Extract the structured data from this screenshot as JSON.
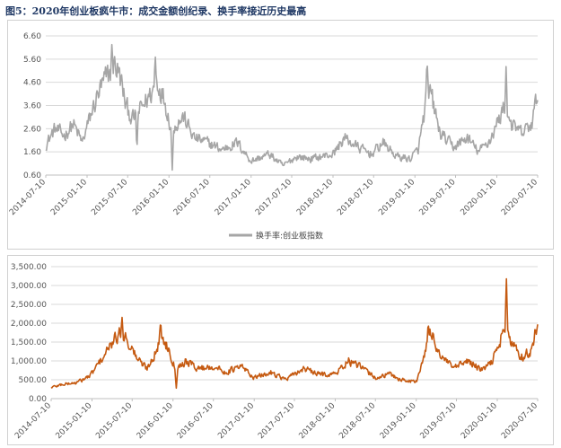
{
  "figure_title": "图5：2020年创业板疯牛市：成交金额创纪录、换手率接近历史最高",
  "chart_data": [
    {
      "type": "line",
      "series": [
        {
          "name": "换手率:创业板指数",
          "color": "#a6a6a6",
          "anchors": [
            [
              "2014-07-10",
              1.9
            ],
            [
              "2014-08-20",
              2.6
            ],
            [
              "2014-10-01",
              2.3
            ],
            [
              "2014-11-10",
              2.8
            ],
            [
              "2014-12-20",
              2.0
            ],
            [
              "2015-01-20",
              3.0
            ],
            [
              "2015-03-01",
              4.1
            ],
            [
              "2015-04-01",
              4.7
            ],
            [
              "2015-05-15",
              5.4
            ],
            [
              "2015-06-10",
              4.7
            ],
            [
              "2015-07-01",
              3.6
            ],
            [
              "2015-08-01",
              3.0
            ],
            [
              "2015-09-01",
              3.4
            ],
            [
              "2015-10-15",
              4.0
            ],
            [
              "2015-11-20",
              4.6
            ],
            [
              "2015-12-20",
              3.9
            ],
            [
              "2016-01-20",
              2.6
            ],
            [
              "2016-03-15",
              3.1
            ],
            [
              "2016-05-01",
              2.2
            ],
            [
              "2016-07-01",
              2.0
            ],
            [
              "2016-09-01",
              1.7
            ],
            [
              "2016-11-10",
              2.0
            ],
            [
              "2017-01-10",
              1.2
            ],
            [
              "2017-04-01",
              1.5
            ],
            [
              "2017-06-01",
              1.0
            ],
            [
              "2017-08-01",
              1.4
            ],
            [
              "2017-10-01",
              1.3
            ],
            [
              "2018-01-10",
              1.5
            ],
            [
              "2018-03-01",
              2.2
            ],
            [
              "2018-05-01",
              1.8
            ],
            [
              "2018-07-01",
              1.5
            ],
            [
              "2018-08-20",
              2.0
            ],
            [
              "2018-10-20",
              1.4
            ],
            [
              "2018-12-20",
              1.3
            ],
            [
              "2019-01-25",
              1.7
            ],
            [
              "2019-02-25",
              3.5
            ],
            [
              "2019-03-20",
              4.2
            ],
            [
              "2019-05-01",
              2.4
            ],
            [
              "2019-07-01",
              1.8
            ],
            [
              "2019-09-01",
              2.2
            ],
            [
              "2019-10-20",
              1.6
            ],
            [
              "2019-12-10",
              2.1
            ],
            [
              "2020-02-15",
              3.6
            ],
            [
              "2020-03-20",
              2.7
            ],
            [
              "2020-05-01",
              2.4
            ],
            [
              "2020-06-15",
              2.8
            ],
            [
              "2020-07-15",
              4.4
            ]
          ],
          "spikes": [
            [
              "2015-05-01",
              6.3
            ],
            [
              "2015-08-20",
              1.6
            ],
            [
              "2015-11-10",
              5.8
            ],
            [
              "2016-01-25",
              0.7
            ],
            [
              "2019-03-05",
              5.6
            ],
            [
              "2020-02-20",
              5.3
            ],
            [
              "2020-07-15",
              4.8
            ]
          ]
        }
      ],
      "ylim": [
        0.6,
        6.6
      ],
      "yticks": [
        "0.60",
        "1.60",
        "2.60",
        "3.60",
        "4.60",
        "5.60",
        "6.60"
      ],
      "xlim": [
        "2014-07-10",
        "2020-07-10"
      ],
      "xticks": [
        "2014-07-10",
        "2015-01-10",
        "2015-07-10",
        "2016-01-10",
        "2016-07-10",
        "2017-01-10",
        "2017-07-10",
        "2018-01-10",
        "2018-07-10",
        "2019-01-10",
        "2019-07-10",
        "2020-01-10",
        "2020-07-10"
      ],
      "legend": "bottom-center",
      "grid": true
    },
    {
      "type": "line",
      "series": [
        {
          "name": "成交金额",
          "color": "#c55a11",
          "anchors": [
            [
              "2014-07-10",
              300
            ],
            [
              "2014-09-01",
              380
            ],
            [
              "2014-11-01",
              420
            ],
            [
              "2015-01-01",
              600
            ],
            [
              "2015-03-01",
              1100
            ],
            [
              "2015-04-15",
              1500
            ],
            [
              "2015-05-20",
              1750
            ],
            [
              "2015-06-15",
              1600
            ],
            [
              "2015-07-10",
              1300
            ],
            [
              "2015-08-10",
              1000
            ],
            [
              "2015-09-15",
              800
            ],
            [
              "2015-10-20",
              1200
            ],
            [
              "2015-11-20",
              1600
            ],
            [
              "2015-12-20",
              1350
            ],
            [
              "2016-01-20",
              800
            ],
            [
              "2016-03-10",
              1000
            ],
            [
              "2016-05-01",
              800
            ],
            [
              "2016-07-10",
              850
            ],
            [
              "2016-09-01",
              700
            ],
            [
              "2016-11-15",
              850
            ],
            [
              "2017-01-10",
              550
            ],
            [
              "2017-04-01",
              700
            ],
            [
              "2017-06-01",
              500
            ],
            [
              "2017-08-20",
              800
            ],
            [
              "2017-10-20",
              650
            ],
            [
              "2018-01-10",
              650
            ],
            [
              "2018-03-10",
              1000
            ],
            [
              "2018-05-15",
              800
            ],
            [
              "2018-07-10",
              550
            ],
            [
              "2018-09-15",
              650
            ],
            [
              "2018-11-01",
              500
            ],
            [
              "2019-01-10",
              450
            ],
            [
              "2019-02-20",
              1200
            ],
            [
              "2019-03-15",
              1800
            ],
            [
              "2019-05-01",
              1100
            ],
            [
              "2019-07-01",
              800
            ],
            [
              "2019-09-01",
              1000
            ],
            [
              "2019-11-01",
              750
            ],
            [
              "2019-12-15",
              950
            ],
            [
              "2020-02-15",
              1900
            ],
            [
              "2020-03-20",
              1400
            ],
            [
              "2020-05-01",
              1100
            ],
            [
              "2020-06-15",
              1300
            ],
            [
              "2020-07-15",
              2200
            ]
          ],
          "spikes": [
            [
              "2015-05-25",
              2200
            ],
            [
              "2015-11-15",
              2100
            ],
            [
              "2016-01-25",
              250
            ],
            [
              "2019-03-05",
              2050
            ],
            [
              "2020-02-20",
              3200
            ],
            [
              "2020-07-20",
              3250
            ]
          ]
        }
      ],
      "ylim": [
        0,
        3500
      ],
      "yticks": [
        "0.00",
        "500.00",
        "1,000.00",
        "1,500.00",
        "2,000.00",
        "2,500.00",
        "3,000.00",
        "3,500.00"
      ],
      "xlim": [
        "2014-07-10",
        "2020-07-10"
      ],
      "xticks": [
        "2014-07-10",
        "2015-01-10",
        "2015-07-10",
        "2016-01-10",
        "2016-07-10",
        "2017-01-10",
        "2017-07-10",
        "2018-01-10",
        "2018-07-10",
        "2019-01-10",
        "2019-07-10",
        "2020-01-10",
        "2020-07-10"
      ],
      "grid": true
    }
  ]
}
